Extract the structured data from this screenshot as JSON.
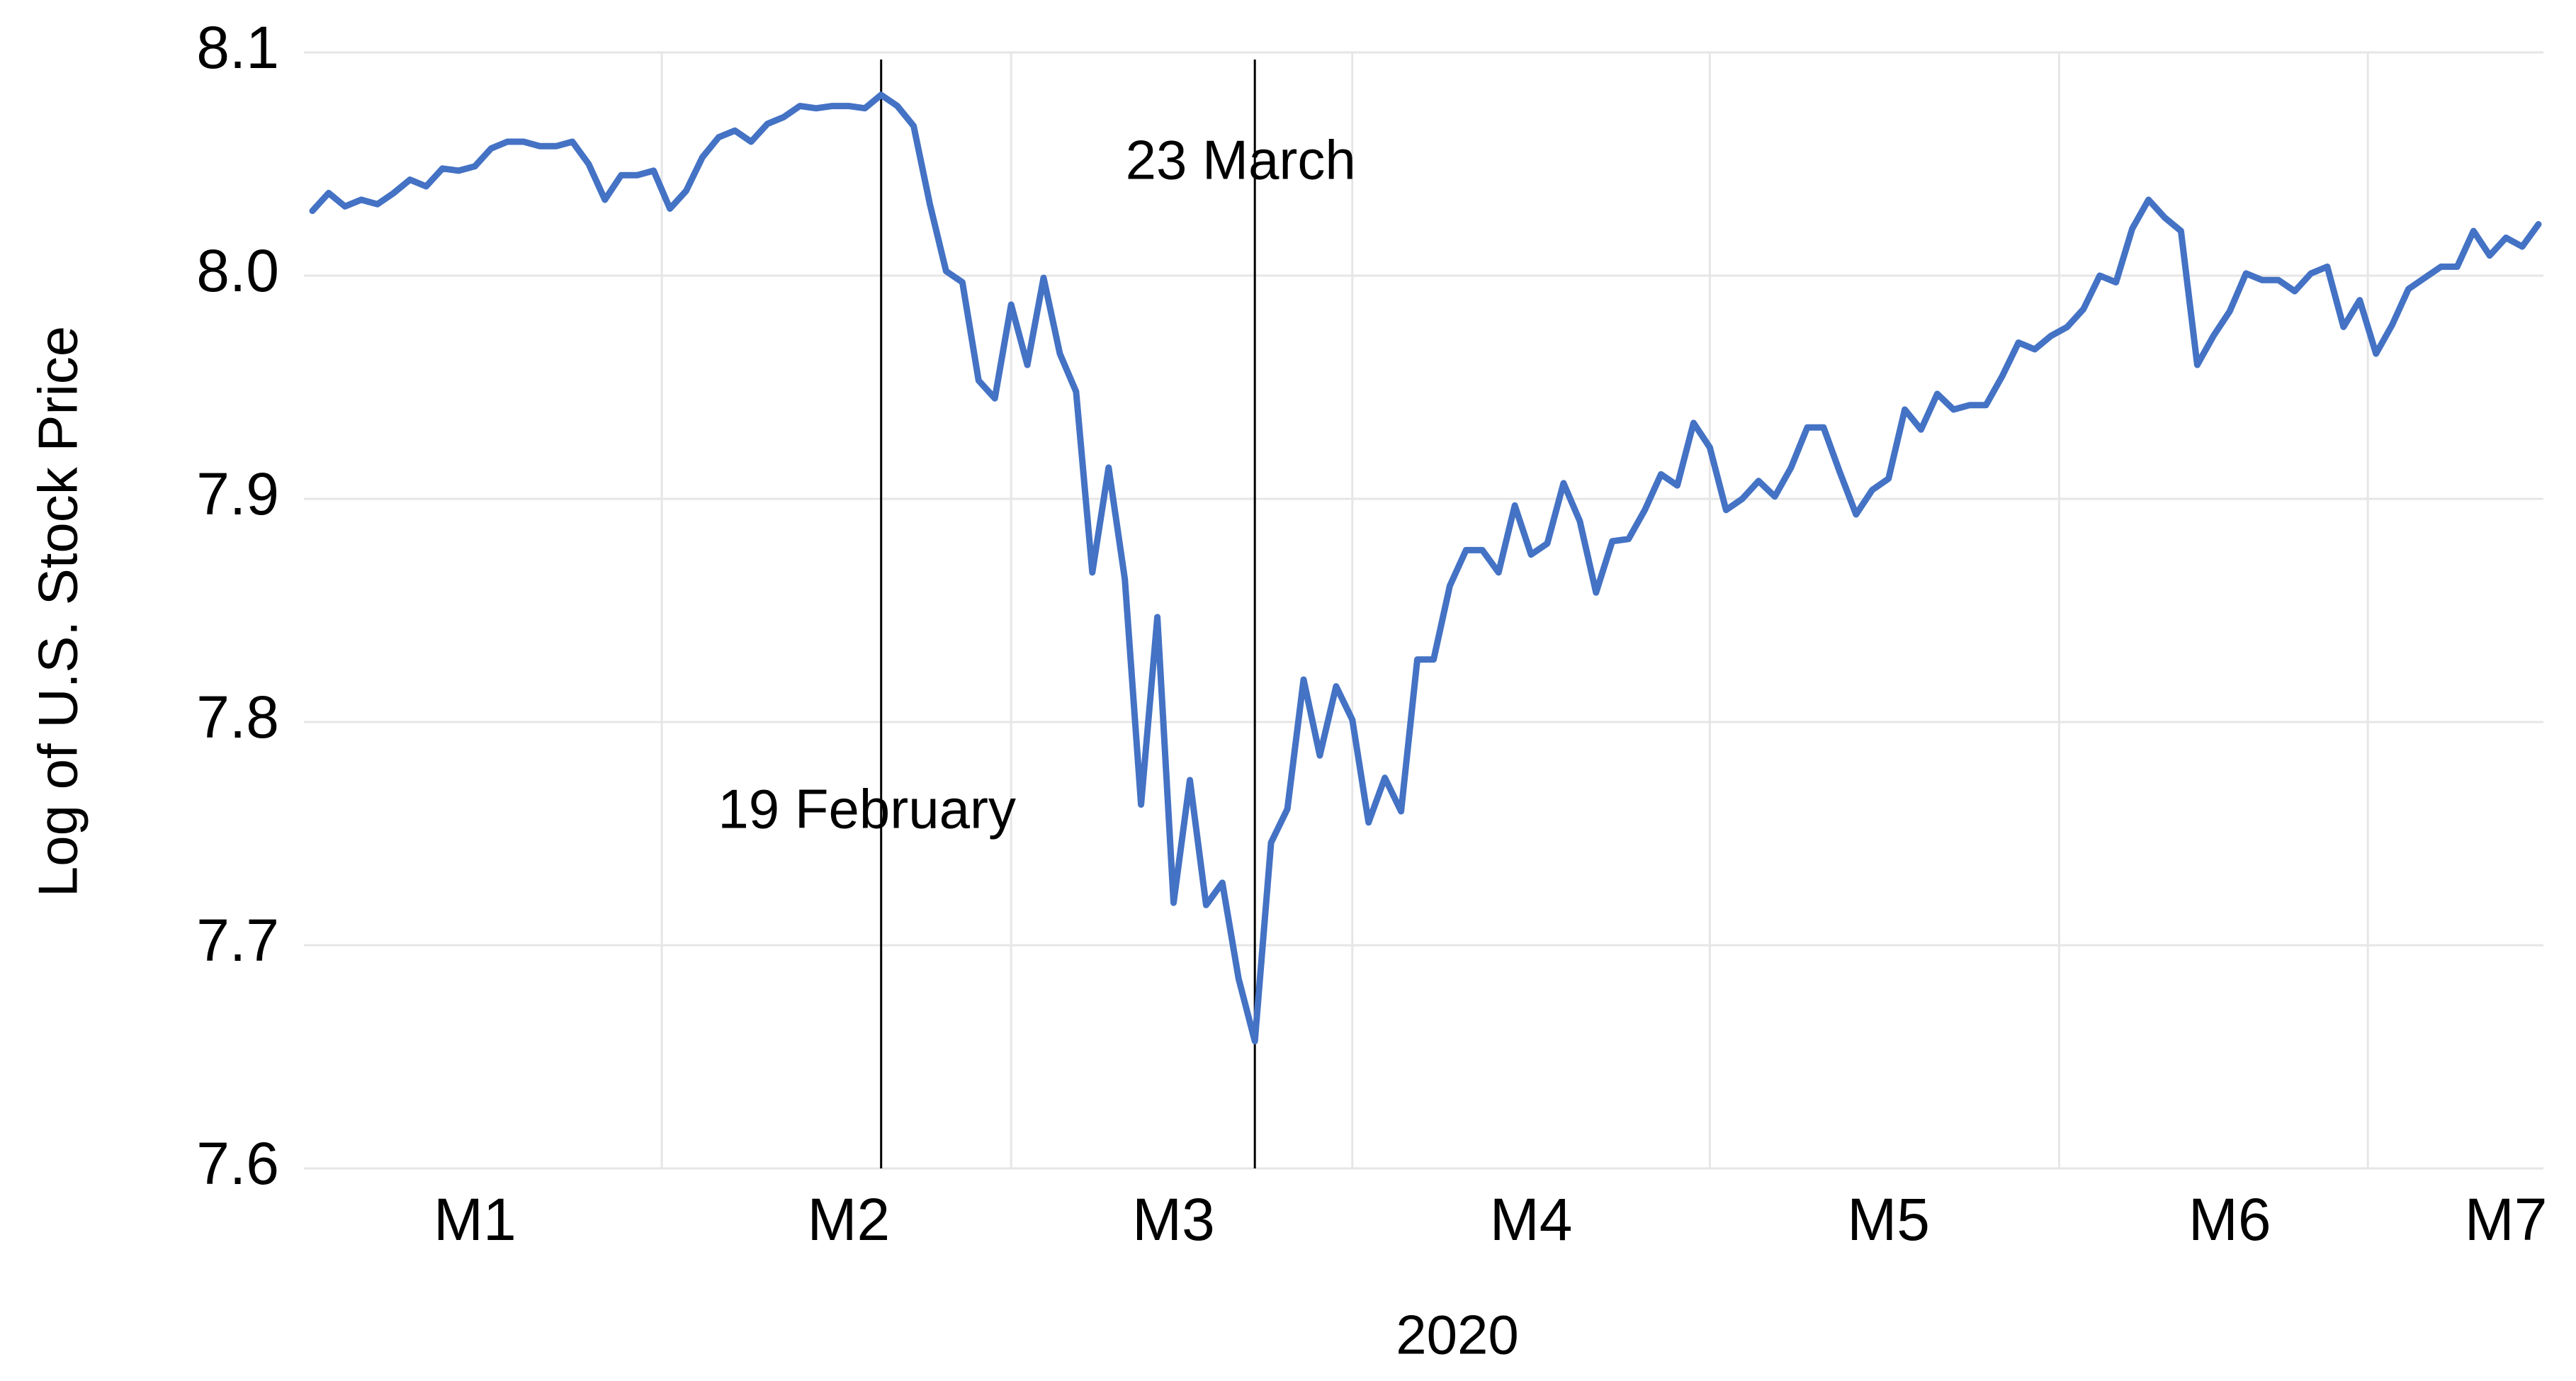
{
  "chart_data": {
    "type": "line",
    "y_label": "Log of U.S. Stock Price",
    "x_label": "2020",
    "color": "#4472c4",
    "ylim": [
      7.6,
      8.1
    ],
    "yticks": [
      7.6,
      7.7,
      7.8,
      7.9,
      {
        "value": 8,
        "label": "8.0"
      },
      8.1
    ],
    "grid": true,
    "categories": [
      null,
      null,
      null,
      null,
      null,
      null,
      null,
      null,
      null,
      null,
      "M1",
      null,
      null,
      null,
      null,
      null,
      null,
      null,
      null,
      null,
      null,
      null,
      null,
      null,
      null,
      null,
      null,
      null,
      null,
      null,
      null,
      null,
      null,
      "M2",
      null,
      null,
      null,
      null,
      null,
      null,
      null,
      null,
      null,
      null,
      null,
      null,
      null,
      null,
      null,
      null,
      null,
      null,
      null,
      "M3",
      null,
      null,
      null,
      null,
      null,
      null,
      null,
      null,
      null,
      null,
      null,
      null,
      null,
      null,
      null,
      null,
      null,
      null,
      null,
      null,
      null,
      "M4",
      null,
      null,
      null,
      null,
      null,
      null,
      null,
      null,
      null,
      null,
      null,
      null,
      null,
      null,
      null,
      null,
      null,
      null,
      null,
      null,
      null,
      "M5",
      null,
      null,
      null,
      null,
      null,
      null,
      null,
      null,
      null,
      null,
      null,
      null,
      null,
      null,
      null,
      null,
      null,
      null,
      null,
      null,
      "M6",
      null,
      null,
      null,
      null,
      null,
      null,
      null,
      null,
      null,
      null,
      null,
      null,
      null,
      null,
      null,
      null,
      "M7",
      null,
      null
    ],
    "values": [
      8.029,
      8.037,
      8.031,
      8.034,
      8.032,
      8.037,
      8.043,
      8.04,
      8.048,
      8.047,
      8.049,
      8.057,
      8.06,
      8.06,
      8.058,
      8.058,
      8.06,
      8.05,
      8.034,
      8.045,
      8.045,
      8.047,
      8.03,
      8.038,
      8.053,
      8.062,
      8.065,
      8.06,
      8.068,
      8.071,
      8.076,
      8.075,
      8.076,
      8.076,
      8.075,
      8.081,
      8.076,
      8.067,
      8.032,
      8.002,
      7.997,
      7.953,
      7.945,
      7.987,
      7.96,
      7.999,
      7.965,
      7.948,
      7.867,
      7.914,
      7.864,
      7.763,
      7.847,
      7.719,
      7.774,
      7.718,
      7.728,
      7.685,
      7.657,
      7.746,
      7.761,
      7.819,
      7.785,
      7.816,
      7.801,
      7.755,
      7.775,
      7.76,
      7.828,
      7.828,
      7.861,
      7.877,
      7.877,
      7.867,
      7.897,
      7.875,
      7.88,
      7.907,
      7.89,
      7.858,
      7.881,
      7.882,
      7.895,
      7.911,
      7.906,
      7.934,
      7.923,
      7.895,
      7.9,
      7.908,
      7.901,
      7.914,
      7.932,
      7.932,
      7.912,
      7.893,
      7.904,
      7.909,
      7.94,
      7.931,
      7.947,
      7.94,
      7.942,
      7.942,
      7.955,
      7.97,
      7.967,
      7.973,
      7.977,
      7.985,
      8.0,
      7.997,
      8.021,
      8.034,
      8.026,
      8.02,
      7.96,
      7.973,
      7.984,
      8.001,
      7.998,
      7.998,
      7.993,
      8.001,
      8.004,
      7.977,
      7.989,
      7.965,
      7.978,
      7.994,
      7.999,
      8.004,
      8.004,
      8.02,
      8.009,
      8.017,
      8.013,
      8.023
    ],
    "annotations": [
      {
        "text": "19 February",
        "index": 35
      },
      {
        "text": "23 March",
        "index": 58
      }
    ]
  }
}
